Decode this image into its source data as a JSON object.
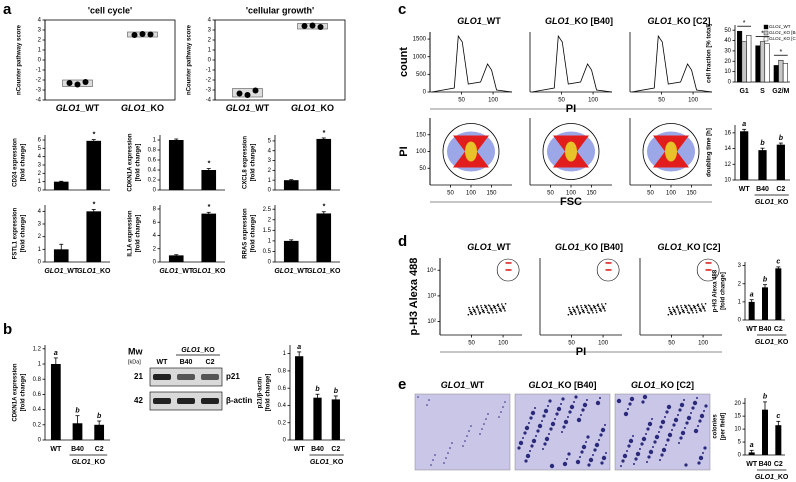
{
  "panel_letters": [
    "a",
    "b",
    "c",
    "d",
    "e"
  ],
  "blot": {
    "mw": "Mw",
    "unit": "[kDa]",
    "sizes": [
      "21",
      "42"
    ],
    "group": "GLO1_KO",
    "lanes": [
      "WT",
      "B40",
      "C2"
    ],
    "bands": [
      "p21",
      "β-actin"
    ]
  },
  "micrographs": [
    "GLO1_WT",
    "GLO1_KO [B40]",
    "GLO1_KO [C2]"
  ],
  "chart_data": [
    {
      "type": "dot",
      "title": "'cell cycle'",
      "ylabel": [
        "nCounter pathway score"
      ],
      "categories": [
        "GLO1_WT",
        "GLO1_KO"
      ],
      "points": [
        [
          -2.3,
          -2.45,
          -2.2
        ],
        [
          2.5,
          2.6,
          2.55
        ]
      ],
      "ylim": [
        -4,
        4
      ],
      "yticks": [
        -4,
        -3,
        -2,
        -1,
        0,
        1,
        2,
        3,
        4
      ]
    },
    {
      "type": "dot",
      "title": "'cellular growth'",
      "ylabel": [
        "nCounter pathway score"
      ],
      "categories": [
        "GLO1_WT",
        "GLO1_KO"
      ],
      "points": [
        [
          -3.35,
          -3.5,
          -3.05
        ],
        [
          3.4,
          3.45,
          3.3
        ]
      ],
      "ylim": [
        -4,
        4
      ],
      "yticks": [
        -4,
        -3,
        -2,
        -1,
        0,
        1,
        2,
        3,
        4
      ]
    },
    {
      "type": "bar",
      "ylabel": [
        "CD24 expression",
        "[fold change]"
      ],
      "values": [
        1,
        5.9
      ],
      "errors": [
        0.05,
        0.15
      ],
      "annotations": [
        null,
        "*"
      ],
      "ylim": [
        0,
        6.6
      ],
      "yticks": [
        0,
        1,
        2,
        3,
        4,
        5,
        6
      ]
    },
    {
      "type": "bar",
      "ylabel": [
        "CDKN1A expression",
        "[fold change]"
      ],
      "values": [
        1,
        0.4
      ],
      "errors": [
        0.02,
        0.03
      ],
      "annotations": [
        null,
        "*"
      ],
      "ylim": [
        0,
        1.1
      ],
      "yticks": [
        0,
        0.2,
        0.4,
        0.6,
        0.8,
        1
      ]
    },
    {
      "type": "bar",
      "ylabel": [
        "CXCL8 expression",
        "[fold change]"
      ],
      "values": [
        1,
        5.2
      ],
      "errors": [
        0.05,
        0.1
      ],
      "annotations": [
        null,
        "*"
      ],
      "ylim": [
        0,
        5.6
      ],
      "yticks": [
        0,
        1,
        2,
        3,
        4,
        5
      ]
    },
    {
      "type": "bar",
      "ylabel": [
        "FSTL1 expression",
        "[fold change]"
      ],
      "categories": [
        "GLO1_WT",
        "GLO1_KO"
      ],
      "values": [
        1,
        4
      ],
      "errors": [
        0.4,
        0.15
      ],
      "annotations": [
        null,
        "*"
      ],
      "ylim": [
        0,
        4.5
      ],
      "yticks": [
        0,
        1,
        2,
        3,
        4
      ]
    },
    {
      "type": "bar",
      "ylabel": [
        "IL1A expression",
        "[fold change]"
      ],
      "categories": [
        "GLO1_WT",
        "GLO1_KO"
      ],
      "values": [
        1,
        7.3
      ],
      "errors": [
        0.1,
        0.2
      ],
      "annotations": [
        null,
        "*"
      ],
      "ylim": [
        0,
        8.6
      ],
      "yticks": [
        0,
        2,
        4,
        6,
        8
      ]
    },
    {
      "type": "bar",
      "ylabel": [
        "RRAS expression",
        "[fold change]"
      ],
      "categories": [
        "GLO1_WT",
        "GLO1_KO"
      ],
      "values": [
        1,
        2.3
      ],
      "errors": [
        0.05,
        0.08
      ],
      "annotations": [
        null,
        "*"
      ],
      "ylim": [
        0,
        2.7
      ],
      "yticks": [
        0,
        0.5,
        1,
        1.5,
        2,
        2.5
      ]
    },
    {
      "type": "bar",
      "ylabel": [
        "CDKN1A expression",
        "[fold change]"
      ],
      "categories": [
        "WT",
        "B40",
        "C2"
      ],
      "group_label": "GLO1_KO",
      "values": [
        1,
        0.22,
        0.2
      ],
      "errors": [
        0.08,
        0.1,
        0.05
      ],
      "annotations": [
        "a",
        "b",
        "b"
      ],
      "ylim": [
        0,
        1.25
      ],
      "yticks": [
        0,
        0.2,
        0.4,
        0.6,
        0.8,
        1,
        1.2
      ]
    },
    {
      "type": "bar",
      "ylabel": [
        "p21/β-actin",
        "[fold change]"
      ],
      "categories": [
        "WT",
        "B40",
        "C2"
      ],
      "group_label": "GLO1_KO",
      "values": [
        0.97,
        0.49,
        0.47
      ],
      "errors": [
        0.05,
        0.04,
        0.04
      ],
      "annotations": [
        "a",
        "b",
        "b"
      ],
      "ylim": [
        0,
        1.1
      ],
      "yticks": [
        0,
        0.2,
        0.4,
        0.6,
        0.8,
        1
      ]
    },
    {
      "type": "flow-hist",
      "titles": [
        "GLO1_WT",
        "GLO1_KO [B40]",
        "GLO1_KO [C2]"
      ],
      "xlabel": "PI",
      "ylabel": "count",
      "xlim": [
        0,
        130
      ],
      "xticks": [
        50,
        100
      ],
      "ylim": [
        0,
        1700
      ],
      "yticks": [
        0,
        500,
        1000,
        1500
      ]
    },
    {
      "type": "flow-density",
      "xlabel": "FSC",
      "ylabel": "PI",
      "xlim": [
        0,
        200
      ],
      "xticks": [
        50,
        100,
        150
      ],
      "ylim": [
        0,
        200
      ],
      "yticks": [
        50,
        100,
        150
      ]
    },
    {
      "type": "grouped-bar",
      "ylabel": [
        "cell fraction [% total]"
      ],
      "categories": [
        "G1",
        "S",
        "G2/M"
      ],
      "annotations": [
        "*",
        "*",
        "*"
      ],
      "series": [
        {
          "name": "GLO1_WT",
          "color": "#000000",
          "values": [
            49,
            35,
            16
          ]
        },
        {
          "name": "GLO1_KO [B40]",
          "color": "#c8c8c8",
          "values": [
            39,
            39,
            21
          ]
        },
        {
          "name": "GLO1_KO [C2]",
          "color": "#ffffff",
          "values": [
            45,
            37,
            18
          ]
        }
      ],
      "ylim": [
        0,
        55
      ],
      "yticks": [
        0,
        10,
        20,
        30,
        40,
        50
      ]
    },
    {
      "type": "bar",
      "ylabel": [
        "doubling time [h]"
      ],
      "categories": [
        "WT",
        "B40",
        "C2"
      ],
      "group_label": "GLO1_KO",
      "values": [
        16.2,
        13.8,
        14.5
      ],
      "errors": [
        0.25,
        0.25,
        0.2
      ],
      "annotations": [
        "a",
        "b",
        "b"
      ],
      "ylim": [
        10,
        17
      ],
      "yticks": [
        10,
        12,
        14,
        16
      ]
    },
    {
      "type": "flow-scatter",
      "titles": [
        "GLO1_WT",
        "GLO1_KO [B40]",
        "GLO1_KO [C2]"
      ],
      "xlabel": "PI",
      "ylabel": "p-H3 Alexa 488",
      "log": true,
      "xlim": [
        0,
        130
      ],
      "xticks": [
        50,
        100
      ],
      "ylim": [
        30,
        30000
      ],
      "yticks": [
        {
          "value": 100,
          "label": "10²"
        },
        {
          "value": 1000,
          "label": "10³"
        },
        {
          "value": 10000,
          "label": "10⁴"
        }
      ]
    },
    {
      "type": "bar",
      "ylabel": [
        "p-H3 Alexa 488",
        "[fold change]"
      ],
      "categories": [
        "WT",
        "B40",
        "C2"
      ],
      "group_label": "GLO1_KO",
      "values": [
        1,
        1.8,
        2.85
      ],
      "errors": [
        0.12,
        0.15,
        0.08
      ],
      "annotations": [
        "a",
        "b",
        "c"
      ],
      "ylim": [
        0,
        3.2
      ],
      "yticks": [
        0,
        1,
        2,
        3
      ]
    },
    {
      "type": "bar",
      "ylabel": [
        "colonies",
        "[per field]"
      ],
      "categories": [
        "WT",
        "B40",
        "C2"
      ],
      "group_label": "GLO1_KO",
      "values": [
        1,
        17.5,
        11.5
      ],
      "errors": [
        0.8,
        3,
        1.5
      ],
      "annotations": [
        "a",
        "b",
        "c"
      ],
      "ylim": [
        0,
        22
      ],
      "yticks": [
        0,
        5,
        10,
        15,
        20
      ]
    }
  ]
}
